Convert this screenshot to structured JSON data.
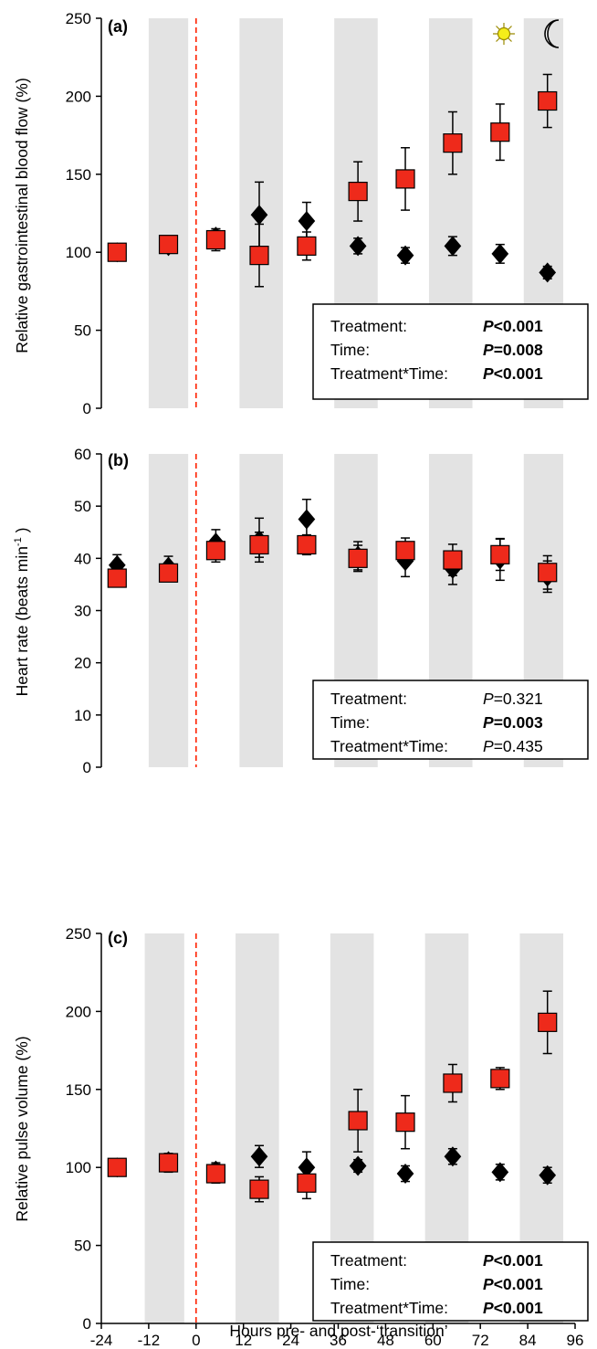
{
  "chart_data": [
    {
      "type": "scatter",
      "panel_label": "(a)",
      "ylabel": "Relative gastrointestinal blood flow (%)",
      "ylim": [
        0,
        250
      ],
      "yticks": [
        0,
        50,
        100,
        150,
        200,
        250
      ],
      "night_bands": [
        [
          -12,
          -2
        ],
        [
          11,
          22
        ],
        [
          35,
          46
        ],
        [
          59,
          70
        ],
        [
          83,
          93
        ]
      ],
      "icons": [
        "sun-icon",
        "moon-icon"
      ],
      "series": [
        {
          "marker": "diamond",
          "color": "#000000",
          "points": [
            {
              "x": -20,
              "y": 100,
              "err": 3
            },
            {
              "x": -7,
              "y": 104,
              "err": 3
            },
            {
              "x": 5,
              "y": 110,
              "err": 5
            },
            {
              "x": 16,
              "y": 124,
              "err": 21
            },
            {
              "x": 28,
              "y": 120,
              "err": 12
            },
            {
              "x": 41,
              "y": 104,
              "err": 5
            },
            {
              "x": 53,
              "y": 98,
              "err": 5
            },
            {
              "x": 65,
              "y": 104,
              "err": 6
            },
            {
              "x": 77,
              "y": 99,
              "err": 6
            },
            {
              "x": 89,
              "y": 87,
              "err": 4
            }
          ]
        },
        {
          "marker": "square",
          "color": "#ee2a1b",
          "points": [
            {
              "x": -20,
              "y": 100,
              "err": 5
            },
            {
              "x": -7,
              "y": 105,
              "err": 5
            },
            {
              "x": 5,
              "y": 108,
              "err": 7
            },
            {
              "x": 16,
              "y": 98,
              "err": 20
            },
            {
              "x": 28,
              "y": 104,
              "err": 9
            },
            {
              "x": 41,
              "y": 139,
              "err": 19
            },
            {
              "x": 53,
              "y": 147,
              "err": 20
            },
            {
              "x": 65,
              "y": 170,
              "err": 20
            },
            {
              "x": 77,
              "y": 177,
              "err": 18
            },
            {
              "x": 89,
              "y": 197,
              "err": 17
            }
          ]
        }
      ],
      "stats": [
        {
          "label": "Treatment:",
          "p_prefix": "P",
          "p_suffix": "<0.001",
          "bold": true
        },
        {
          "label": "Time:",
          "p_prefix": "P",
          "p_suffix": "=0.008",
          "bold": true
        },
        {
          "label": "Treatment*Time:",
          "p_prefix": "P",
          "p_suffix": "<0.001",
          "bold": true
        }
      ]
    },
    {
      "type": "scatter",
      "panel_label": "(b)",
      "ylabel_main": "Heart rate (beats min",
      "ylabel_sup": "-1",
      "ylabel_end": " )",
      "ylim": [
        0,
        60
      ],
      "yticks": [
        0,
        10,
        20,
        30,
        40,
        50,
        60
      ],
      "night_bands": [
        [
          -12,
          -2
        ],
        [
          11,
          22
        ],
        [
          35,
          46
        ],
        [
          59,
          70
        ],
        [
          83,
          93
        ]
      ],
      "series": [
        {
          "marker": "diamond",
          "color": "#000000",
          "points": [
            {
              "x": -20,
              "y": 38.7,
              "err": 2.0
            },
            {
              "x": -7,
              "y": 38.4,
              "err": 2.0
            },
            {
              "x": 5,
              "y": 43.0,
              "err": 2.5
            },
            {
              "x": 16,
              "y": 43.5,
              "err": 4.2
            },
            {
              "x": 28,
              "y": 47.5,
              "err": 3.8
            },
            {
              "x": 41,
              "y": 40.5,
              "err": 2.7
            },
            {
              "x": 53,
              "y": 39.5,
              "err": 3.0
            },
            {
              "x": 65,
              "y": 38.0,
              "err": 3.0
            },
            {
              "x": 77,
              "y": 39.8,
              "err": 4.0
            },
            {
              "x": 89,
              "y": 36.5,
              "err": 3.0
            }
          ]
        },
        {
          "marker": "square",
          "color": "#ee2a1b",
          "points": [
            {
              "x": -20,
              "y": 36.2,
              "err": 1.0
            },
            {
              "x": -7,
              "y": 37.2,
              "err": 1.3
            },
            {
              "x": 5,
              "y": 41.5,
              "err": 2.2
            },
            {
              "x": 16,
              "y": 42.6,
              "err": 2.4
            },
            {
              "x": 28,
              "y": 42.6,
              "err": 1.9
            },
            {
              "x": 41,
              "y": 40.0,
              "err": 2.5
            },
            {
              "x": 53,
              "y": 41.5,
              "err": 2.4
            },
            {
              "x": 65,
              "y": 39.7,
              "err": 3.0
            },
            {
              "x": 77,
              "y": 40.7,
              "err": 3.0
            },
            {
              "x": 89,
              "y": 37.3,
              "err": 3.2
            }
          ]
        }
      ],
      "stats": [
        {
          "label": "Treatment:",
          "p_prefix": "P",
          "p_suffix": "=0.321",
          "bold": false
        },
        {
          "label": "Time:",
          "p_prefix": "P",
          "p_suffix": "=0.003",
          "bold": true
        },
        {
          "label": "Treatment*Time:",
          "p_prefix": "P",
          "p_suffix": "=0.435",
          "bold": false
        }
      ]
    },
    {
      "type": "scatter",
      "panel_label": "(c)",
      "ylabel": "Relative pulse volume (%)",
      "ylim": [
        0,
        250
      ],
      "yticks": [
        0,
        50,
        100,
        150,
        200,
        250
      ],
      "night_bands": [
        [
          -13,
          -3
        ],
        [
          10,
          21
        ],
        [
          34,
          45
        ],
        [
          58,
          69
        ],
        [
          82,
          93
        ]
      ],
      "xlabel": "Hours pre- and post-‘transition’",
      "xticks": [
        "-24",
        "-12",
        "0",
        "12",
        "24",
        "36",
        "48",
        "60",
        "72",
        "84",
        "96"
      ],
      "series": [
        {
          "marker": "diamond",
          "color": "#000000",
          "points": [
            {
              "x": -20,
              "y": 100,
              "err": 3
            },
            {
              "x": -7,
              "y": 104,
              "err": 4
            },
            {
              "x": 5,
              "y": 98,
              "err": 5
            },
            {
              "x": 16,
              "y": 107,
              "err": 7
            },
            {
              "x": 28,
              "y": 100,
              "err": 10
            },
            {
              "x": 41,
              "y": 101,
              "err": 4
            },
            {
              "x": 53,
              "y": 96,
              "err": 5
            },
            {
              "x": 65,
              "y": 107,
              "err": 5
            },
            {
              "x": 77,
              "y": 97,
              "err": 5
            },
            {
              "x": 89,
              "y": 95,
              "err": 5
            }
          ]
        },
        {
          "marker": "square",
          "color": "#ee2a1b",
          "points": [
            {
              "x": -20,
              "y": 100,
              "err": 4
            },
            {
              "x": -7,
              "y": 103,
              "err": 6
            },
            {
              "x": 5,
              "y": 96,
              "err": 6
            },
            {
              "x": 16,
              "y": 86,
              "err": 8
            },
            {
              "x": 28,
              "y": 90,
              "err": 10
            },
            {
              "x": 41,
              "y": 130,
              "err": 20
            },
            {
              "x": 53,
              "y": 129,
              "err": 17
            },
            {
              "x": 65,
              "y": 154,
              "err": 12
            },
            {
              "x": 77,
              "y": 157,
              "err": 7
            },
            {
              "x": 89,
              "y": 193,
              "err": 20
            }
          ]
        }
      ],
      "stats": [
        {
          "label": "Treatment:",
          "p_prefix": "P",
          "p_suffix": "<0.001",
          "bold": true
        },
        {
          "label": "Time:",
          "p_prefix": "P",
          "p_suffix": "<0.001",
          "bold": true
        },
        {
          "label": "Treatment*Time:",
          "p_prefix": "P",
          "p_suffix": "<0.001",
          "bold": true
        }
      ]
    }
  ]
}
